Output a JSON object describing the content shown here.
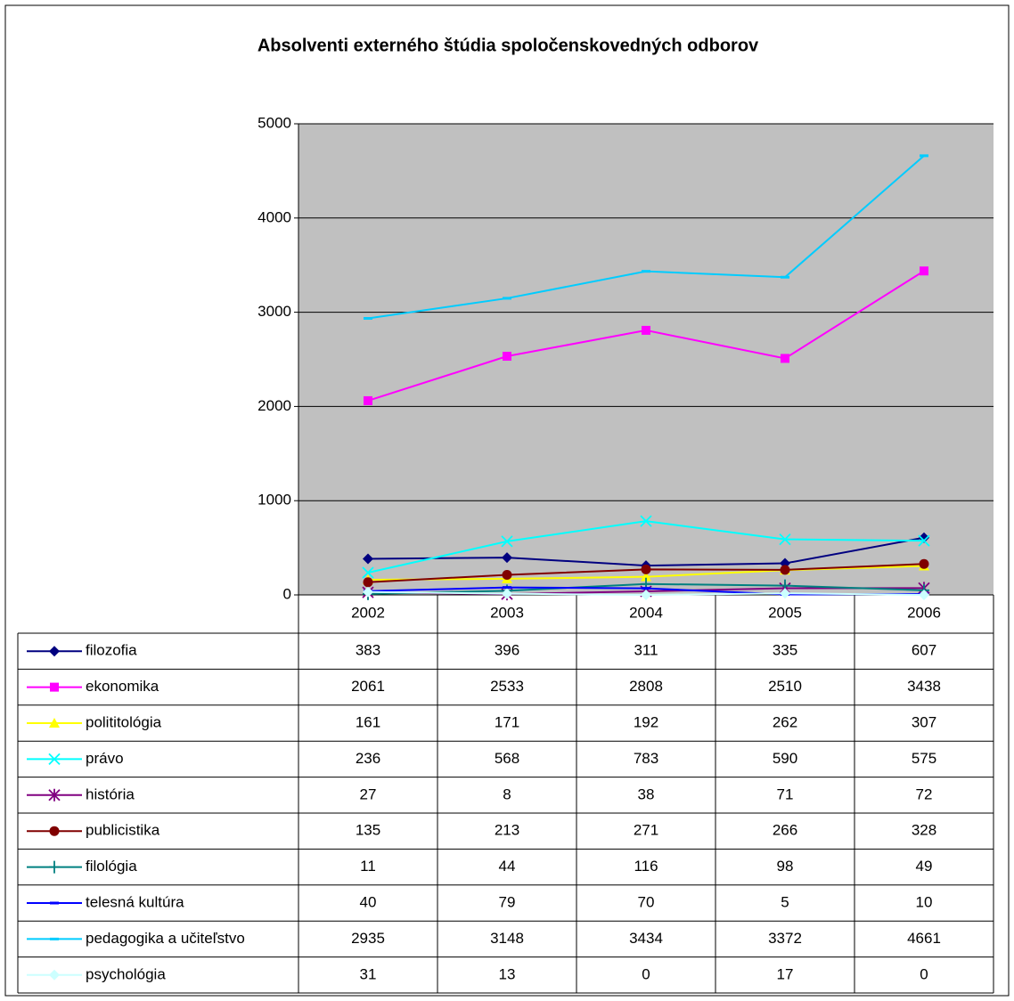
{
  "chart_data": {
    "type": "line",
    "title": "Absolventi externého štúdia spoločenskovedných odborov",
    "categories": [
      "2002",
      "2003",
      "2004",
      "2005",
      "2006"
    ],
    "ylim": [
      0,
      5000
    ],
    "yticks": [
      0,
      1000,
      2000,
      3000,
      4000,
      5000
    ],
    "grid": true,
    "series": [
      {
        "name": "filozofia",
        "color": "#000080",
        "marker": "diamond",
        "values": [
          383,
          396,
          311,
          335,
          607
        ]
      },
      {
        "name": "ekonomika",
        "color": "#ff00ff",
        "marker": "square",
        "values": [
          2061,
          2533,
          2808,
          2510,
          3438
        ]
      },
      {
        "name": "polititológia",
        "color": "#ffff00",
        "marker": "triangle",
        "values": [
          161,
          171,
          192,
          262,
          307
        ]
      },
      {
        "name": "právo",
        "color": "#00ffff",
        "marker": "x",
        "values": [
          236,
          568,
          783,
          590,
          575
        ]
      },
      {
        "name": "história",
        "color": "#800080",
        "marker": "star",
        "values": [
          27,
          8,
          38,
          71,
          72
        ]
      },
      {
        "name": "publicistika",
        "color": "#800000",
        "marker": "circle",
        "values": [
          135,
          213,
          271,
          266,
          328
        ]
      },
      {
        "name": "filológia",
        "color": "#008080",
        "marker": "plus",
        "values": [
          11,
          44,
          116,
          98,
          49
        ]
      },
      {
        "name": "telesná kultúra",
        "color": "#0000ff",
        "marker": "dash",
        "values": [
          40,
          79,
          70,
          5,
          10
        ]
      },
      {
        "name": "pedagogika a učiteľstvo",
        "color": "#00ccff",
        "marker": "dash",
        "values": [
          2935,
          3148,
          3434,
          3372,
          4661
        ]
      },
      {
        "name": "psychológia",
        "color": "#ccffff",
        "marker": "diamond",
        "values": [
          31,
          13,
          0,
          17,
          0
        ]
      }
    ]
  }
}
